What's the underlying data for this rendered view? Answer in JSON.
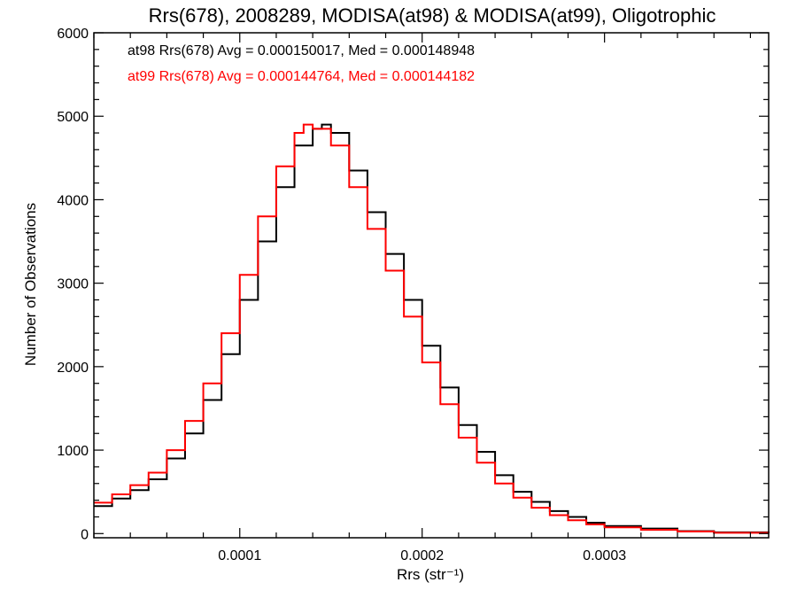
{
  "chart_data": {
    "type": "line",
    "step": true,
    "title": "Rrs(678), 2008289, MODISA(at98) & MODISA(at99), Oligotrophic",
    "xlabel": "Rrs (str⁻¹)",
    "ylabel": "Number of Observations",
    "xlim": [
      2e-05,
      0.00039
    ],
    "ylim": [
      -50,
      6000
    ],
    "x_ticks": [
      0.0001,
      0.0002,
      0.0003
    ],
    "x_tick_labels": [
      "0.0001",
      "0.0002",
      "0.0003"
    ],
    "y_ticks": [
      0,
      1000,
      2000,
      3000,
      4000,
      5000,
      6000
    ],
    "y_tick_labels": [
      "0",
      "1000",
      "2000",
      "3000",
      "4000",
      "5000",
      "6000"
    ],
    "grid": false,
    "legend_position": "top-left",
    "series": [
      {
        "name": "at98",
        "legend": "at98 Rrs(678) Avg = 0.000150017, Med = 0.000148948",
        "color": "#000000",
        "x": [
          2e-05,
          3e-05,
          4e-05,
          5e-05,
          6e-05,
          7e-05,
          8e-05,
          9e-05,
          0.0001,
          0.00011,
          0.00012,
          0.00013,
          0.00014,
          0.000145,
          0.00015,
          0.00016,
          0.00017,
          0.00018,
          0.00019,
          0.0002,
          0.00021,
          0.00022,
          0.00023,
          0.00024,
          0.00025,
          0.00026,
          0.00027,
          0.00028,
          0.00029,
          0.0003,
          0.00032,
          0.00034,
          0.00036,
          0.00039
        ],
        "y": [
          330,
          420,
          520,
          650,
          900,
          1200,
          1600,
          2150,
          2800,
          3500,
          4150,
          4650,
          4850,
          4900,
          4800,
          4350,
          3850,
          3350,
          2800,
          2250,
          1750,
          1300,
          980,
          700,
          500,
          380,
          270,
          200,
          130,
          90,
          60,
          30,
          15,
          5
        ]
      },
      {
        "name": "at99",
        "legend": "at99 Rrs(678) Avg = 0.000144764, Med = 0.000144182",
        "color": "#ff0000",
        "x": [
          2e-05,
          3e-05,
          4e-05,
          5e-05,
          6e-05,
          7e-05,
          8e-05,
          9e-05,
          0.0001,
          0.00011,
          0.00012,
          0.00013,
          0.000135,
          0.00014,
          0.00015,
          0.00016,
          0.00017,
          0.00018,
          0.00019,
          0.0002,
          0.00021,
          0.00022,
          0.00023,
          0.00024,
          0.00025,
          0.00026,
          0.00027,
          0.00028,
          0.00029,
          0.0003,
          0.00032,
          0.00034,
          0.00036,
          0.00039
        ],
        "y": [
          370,
          470,
          580,
          730,
          1000,
          1350,
          1800,
          2400,
          3100,
          3800,
          4400,
          4800,
          4900,
          4850,
          4650,
          4150,
          3650,
          3150,
          2600,
          2050,
          1550,
          1150,
          850,
          600,
          430,
          310,
          220,
          160,
          110,
          75,
          45,
          25,
          10,
          5
        ]
      }
    ]
  }
}
